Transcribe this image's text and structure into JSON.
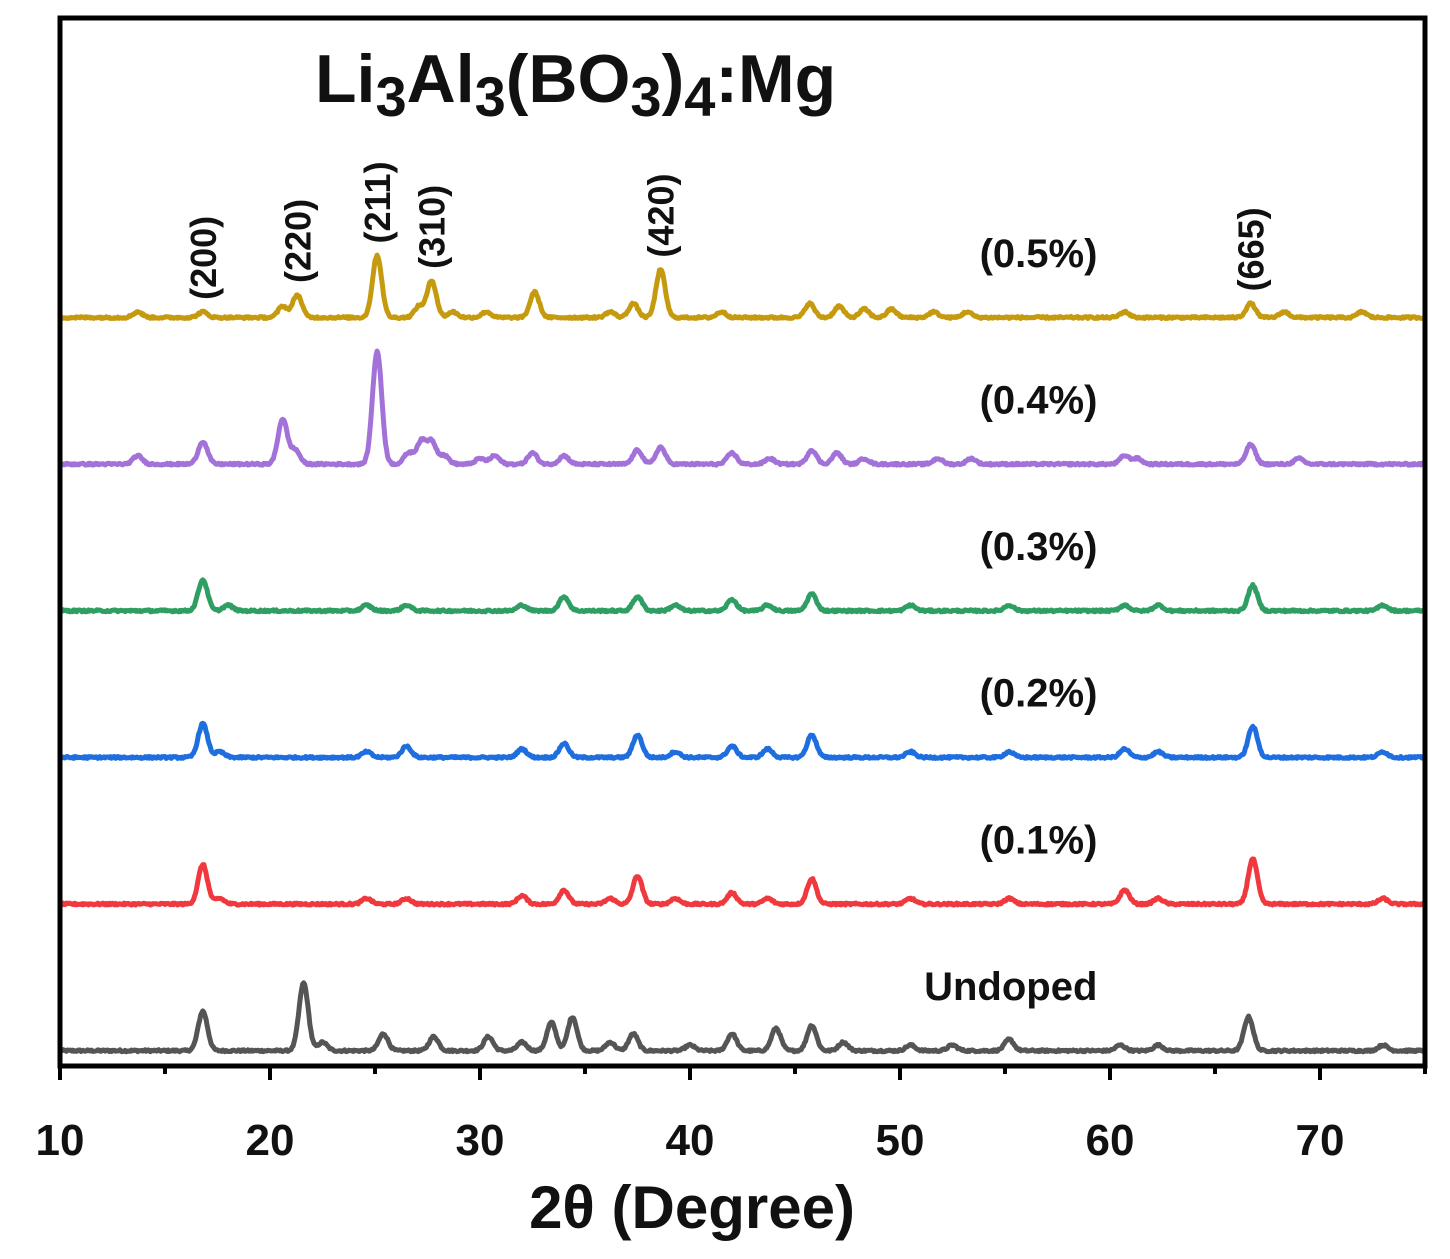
{
  "chart_data": {
    "type": "line",
    "title": "Li3Al3(BO3)4:Mg",
    "title_parts": {
      "a": "Li",
      "b": "3",
      "c": "Al",
      "d": "3",
      "e": "(BO",
      "f": "3",
      "g": ")",
      "h": "4",
      "i": ":Mg"
    },
    "xlabel": "2θ (Degree)",
    "ylabel": "",
    "xlim": [
      10,
      75
    ],
    "x_ticks": [
      10,
      20,
      30,
      40,
      50,
      60,
      70
    ],
    "x_tick_labels": [
      "10",
      "20",
      "30",
      "40",
      "50",
      "60",
      "70"
    ],
    "y_ticks_shown": false,
    "grid": false,
    "legend": "inline labels at right",
    "series": [
      {
        "name": "Undoped",
        "color": "#555555",
        "offset": 0,
        "baseline": 2,
        "peaks": [
          [
            16.8,
            7
          ],
          [
            21.6,
            12
          ],
          [
            22.5,
            1.5
          ],
          [
            25.4,
            3
          ],
          [
            27.8,
            2.5
          ],
          [
            30.4,
            2.5
          ],
          [
            32,
            1.5
          ],
          [
            33.4,
            5
          ],
          [
            34.4,
            6
          ],
          [
            36.2,
            1.5
          ],
          [
            37.3,
            3
          ],
          [
            40,
            1
          ],
          [
            42,
            3
          ],
          [
            44.1,
            4
          ],
          [
            45.8,
            4.5
          ],
          [
            47.3,
            1.5
          ],
          [
            50.5,
            1
          ],
          [
            52.5,
            1
          ],
          [
            55.2,
            2
          ],
          [
            60.5,
            1
          ],
          [
            62.3,
            1
          ],
          [
            66.6,
            6
          ],
          [
            73,
            1
          ]
        ]
      },
      {
        "name": "(0.1%)",
        "color": "#f0393e",
        "offset": 26,
        "baseline": 2,
        "peaks": [
          [
            16.8,
            7
          ],
          [
            17.6,
            1
          ],
          [
            24.6,
            1
          ],
          [
            26.5,
            1
          ],
          [
            32,
            1.5
          ],
          [
            34,
            2.5
          ],
          [
            36.2,
            1
          ],
          [
            37.5,
            5
          ],
          [
            39.3,
            1
          ],
          [
            42,
            2
          ],
          [
            43.7,
            1
          ],
          [
            45.8,
            4.5
          ],
          [
            50.5,
            1
          ],
          [
            55.2,
            1
          ],
          [
            60.7,
            2.5
          ],
          [
            62.3,
            1
          ],
          [
            66.8,
            8
          ],
          [
            73,
            1
          ]
        ]
      },
      {
        "name": "(0.2%)",
        "color": "#1e6ee0",
        "offset": 52,
        "baseline": 2,
        "peaks": [
          [
            16.8,
            6
          ],
          [
            17.6,
            1
          ],
          [
            24.6,
            1
          ],
          [
            26.5,
            2
          ],
          [
            32,
            1.5
          ],
          [
            34,
            2.5
          ],
          [
            37.5,
            4
          ],
          [
            39.3,
            1
          ],
          [
            42,
            2
          ],
          [
            43.7,
            1.5
          ],
          [
            45.8,
            4
          ],
          [
            50.5,
            1
          ],
          [
            55.2,
            1
          ],
          [
            60.7,
            1.5
          ],
          [
            62.3,
            1
          ],
          [
            66.8,
            5.5
          ],
          [
            73,
            1
          ]
        ]
      },
      {
        "name": "(0.3%)",
        "color": "#2f9e63",
        "offset": 78,
        "baseline": 2,
        "peaks": [
          [
            16.8,
            5.5
          ],
          [
            18,
            1
          ],
          [
            24.6,
            1
          ],
          [
            26.5,
            1
          ],
          [
            32,
            1
          ],
          [
            34,
            2.5
          ],
          [
            37.5,
            2.5
          ],
          [
            39.3,
            1
          ],
          [
            42,
            2
          ],
          [
            43.7,
            1
          ],
          [
            45.8,
            3
          ],
          [
            50.5,
            1
          ],
          [
            55.2,
            1
          ],
          [
            60.7,
            1
          ],
          [
            62.3,
            1
          ],
          [
            66.8,
            4.5
          ],
          [
            73,
            1
          ]
        ]
      },
      {
        "name": "(0.4%)",
        "color": "#a272d8",
        "offset": 104,
        "baseline": 2,
        "peaks": [
          [
            13.7,
            1.5
          ],
          [
            16.8,
            4
          ],
          [
            20.6,
            8
          ],
          [
            21.2,
            2.5
          ],
          [
            25.1,
            20
          ],
          [
            26.6,
            2
          ],
          [
            27.2,
            4
          ],
          [
            27.7,
            4
          ],
          [
            28.3,
            1.5
          ],
          [
            30,
            1
          ],
          [
            30.7,
            1.5
          ],
          [
            32.5,
            2
          ],
          [
            34,
            1.5
          ],
          [
            37.5,
            2.5
          ],
          [
            38.6,
            3
          ],
          [
            42,
            2
          ],
          [
            43.8,
            1
          ],
          [
            45.8,
            2.5
          ],
          [
            47,
            2
          ],
          [
            48.3,
            1
          ],
          [
            51.8,
            1
          ],
          [
            53.4,
            1
          ],
          [
            60.7,
            1.5
          ],
          [
            61.3,
            1
          ],
          [
            66.7,
            3.5
          ],
          [
            69,
            1
          ]
        ]
      },
      {
        "name": "(0.5%)",
        "color": "#c69a0f",
        "offset": 130,
        "baseline": 2,
        "peaks": [
          [
            13.7,
            1
          ],
          [
            16.8,
            1
          ],
          [
            20.6,
            2
          ],
          [
            21.3,
            4
          ],
          [
            25.1,
            11
          ],
          [
            27.1,
            2
          ],
          [
            27.7,
            6.5
          ],
          [
            28.7,
            1
          ],
          [
            30.3,
            1
          ],
          [
            32.6,
            4.5
          ],
          [
            36.2,
            1
          ],
          [
            37.3,
            2.5
          ],
          [
            38.6,
            8.5
          ],
          [
            41.5,
            1
          ],
          [
            45.7,
            2.5
          ],
          [
            47.1,
            2
          ],
          [
            48.3,
            1.5
          ],
          [
            49.6,
            1.5
          ],
          [
            51.6,
            1
          ],
          [
            53.2,
            1
          ],
          [
            60.7,
            1
          ],
          [
            66.7,
            2.5
          ],
          [
            68.3,
            1
          ],
          [
            72,
            1
          ]
        ]
      }
    ],
    "peak_labels": [
      {
        "text": "(200)",
        "x": 16.8
      },
      {
        "text": "(220)",
        "x": 21.3
      },
      {
        "text": "(211)",
        "x": 25.1
      },
      {
        "text": "(310)",
        "x": 27.7
      },
      {
        "text": "(420)",
        "x": 38.6
      },
      {
        "text": "(665)",
        "x": 66.7
      }
    ]
  }
}
